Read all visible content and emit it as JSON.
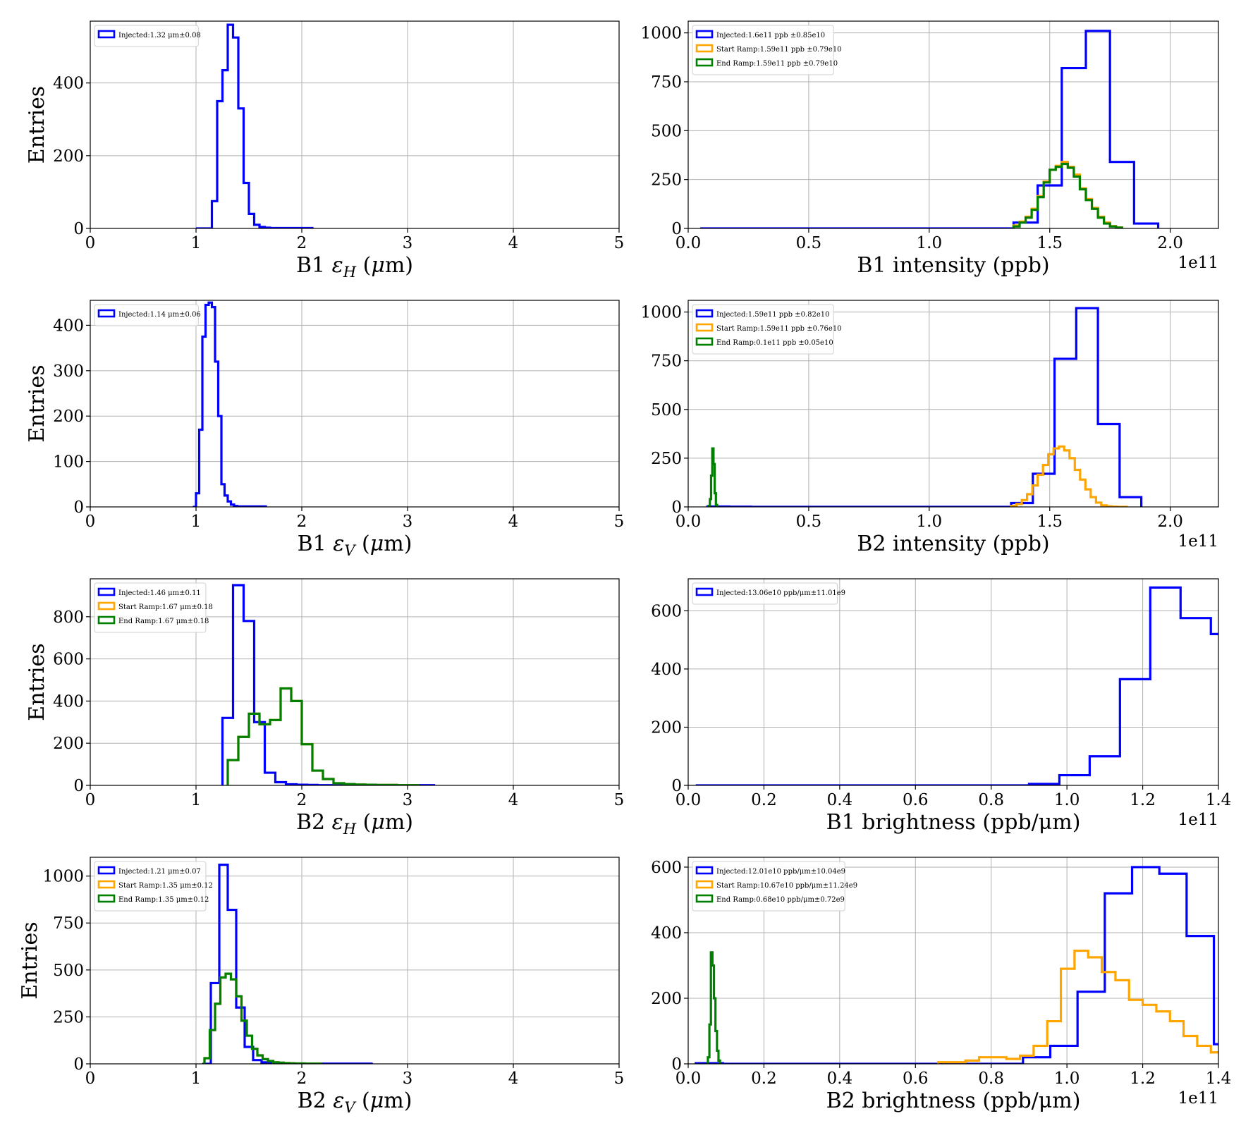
{
  "chart_data": [
    {
      "type": "histogram",
      "panel": "b1-eh",
      "xlabel": "B1 ε_H (μm)",
      "xlabel_parts": [
        "B1 ",
        "ε",
        "H",
        " (",
        "μ",
        "m)"
      ],
      "ylabel": "Entries",
      "xlim": [
        0,
        5
      ],
      "ylim": [
        0,
        570
      ],
      "xticks": [
        0,
        1,
        2,
        3,
        4,
        5
      ],
      "xtick_labels": [
        "0",
        "1",
        "2",
        "3",
        "4",
        "5"
      ],
      "yticks": [
        0,
        200,
        400
      ],
      "ytick_labels": [
        "0",
        "200",
        "400"
      ],
      "offset_label": "",
      "grid": true,
      "legend_position": "top-left",
      "series": [
        {
          "name": "Injected:1.32 μm±0.08",
          "color": "#0000ff",
          "bin_width": 0.05,
          "x_start": 1.0,
          "values": [
            0,
            0,
            0,
            75,
            350,
            435,
            560,
            525,
            330,
            125,
            40,
            10,
            4,
            2,
            1,
            1,
            1,
            1,
            1,
            1,
            1,
            1
          ]
        }
      ]
    },
    {
      "type": "histogram",
      "panel": "b1-intensity",
      "xlabel": "B1 intensity (ppb)",
      "ylabel": "",
      "xlim": [
        0,
        2.2
      ],
      "ylim": [
        0,
        1060
      ],
      "xticks": [
        0,
        0.5,
        1.0,
        1.5,
        2.0
      ],
      "xtick_labels": [
        "0.0",
        "0.5",
        "1.0",
        "1.5",
        "2.0"
      ],
      "yticks": [
        0,
        250,
        500,
        750,
        1000
      ],
      "ytick_labels": [
        "0",
        "250",
        "500",
        "750",
        "1000"
      ],
      "offset_label": "1e11",
      "grid": true,
      "legend_position": "top-left",
      "series": [
        {
          "name": "Injected:1.6e11 ppb ±0.85e10",
          "color": "#0000ff",
          "bin_width": 0.1,
          "x_start": 0.05,
          "values": [
            0,
            0,
            0,
            0,
            0,
            0,
            0,
            0,
            0,
            0,
            0,
            0,
            0,
            30,
            220,
            820,
            1010,
            340,
            25
          ]
        },
        {
          "name": "Start Ramp:1.59e11 ppb ±0.79e10",
          "color": "#ffa500",
          "bin_width": 0.025,
          "x_start": 1.35,
          "values": [
            15,
            35,
            60,
            100,
            165,
            240,
            300,
            320,
            340,
            315,
            275,
            205,
            150,
            105,
            60,
            30,
            12,
            5
          ]
        },
        {
          "name": "End Ramp:1.59e11 ppb ±0.79e10",
          "color": "#008000",
          "bin_width": 0.025,
          "x_start": 1.35,
          "values": [
            10,
            30,
            55,
            95,
            160,
            235,
            300,
            315,
            330,
            310,
            265,
            200,
            145,
            100,
            55,
            25,
            10,
            4
          ]
        }
      ]
    },
    {
      "type": "histogram",
      "panel": "b1-ev",
      "xlabel": "B1 ε_V (μm)",
      "xlabel_parts": [
        "B1 ",
        "ε",
        "V",
        " (",
        "μ",
        "m)"
      ],
      "ylabel": "Entries",
      "xlim": [
        0,
        5
      ],
      "ylim": [
        0,
        455
      ],
      "xticks": [
        0,
        1,
        2,
        3,
        4,
        5
      ],
      "xtick_labels": [
        "0",
        "1",
        "2",
        "3",
        "4",
        "5"
      ],
      "yticks": [
        0,
        100,
        200,
        300,
        400
      ],
      "ytick_labels": [
        "0",
        "100",
        "200",
        "300",
        "400"
      ],
      "offset_label": "",
      "grid": true,
      "legend_position": "top-left",
      "series": [
        {
          "name": "Injected:1.14 μm±0.06",
          "color": "#0000ff",
          "bin_width": 0.03,
          "x_start": 0.97,
          "values": [
            0,
            30,
            170,
            375,
            445,
            450,
            440,
            320,
            200,
            50,
            25,
            12,
            5,
            2,
            1,
            1,
            1,
            1,
            1,
            1,
            1,
            1,
            1
          ]
        }
      ]
    },
    {
      "type": "histogram",
      "panel": "b2-intensity",
      "xlabel": "B2 intensity (ppb)",
      "ylabel": "",
      "xlim": [
        0,
        2.2
      ],
      "ylim": [
        0,
        1060
      ],
      "xticks": [
        0,
        0.5,
        1.0,
        1.5,
        2.0
      ],
      "xtick_labels": [
        "0.0",
        "0.5",
        "1.0",
        "1.5",
        "2.0"
      ],
      "yticks": [
        0,
        250,
        500,
        750,
        1000
      ],
      "ytick_labels": [
        "0",
        "250",
        "500",
        "750",
        "1000"
      ],
      "offset_label": "1e11",
      "grid": true,
      "legend_position": "top-left",
      "series": [
        {
          "name": "Injected:1.59e11 ppb ±0.82e10",
          "color": "#0000ff",
          "bin_width": 0.09,
          "x_start": 0.08,
          "values": [
            2,
            1,
            0,
            0,
            0,
            0,
            0,
            0,
            0,
            0,
            0,
            0,
            0,
            0,
            20,
            170,
            760,
            1020,
            425,
            50
          ]
        },
        {
          "name": "Start Ramp:1.59e11 ppb ±0.76e10",
          "color": "#ffa500",
          "bin_width": 0.022,
          "x_start": 1.34,
          "values": [
            5,
            15,
            35,
            65,
            110,
            165,
            215,
            270,
            300,
            310,
            290,
            250,
            190,
            140,
            90,
            50,
            22,
            8,
            3,
            1,
            0,
            0
          ]
        },
        {
          "name": "End Ramp:0.1e11 ppb ±0.05e10",
          "color": "#008000",
          "bin_width": 0.005,
          "x_start": 0.085,
          "values": [
            5,
            40,
            160,
            300,
            220,
            70,
            10,
            0
          ]
        }
      ]
    },
    {
      "type": "histogram",
      "panel": "b2-eh",
      "xlabel": "B2 ε_H (μm)",
      "xlabel_parts": [
        "B2 ",
        "ε",
        "H",
        " (",
        "μ",
        "m)"
      ],
      "ylabel": "Entries",
      "xlim": [
        0,
        5
      ],
      "ylim": [
        0,
        980
      ],
      "xticks": [
        0,
        1,
        2,
        3,
        4,
        5
      ],
      "xtick_labels": [
        "0",
        "1",
        "2",
        "3",
        "4",
        "5"
      ],
      "yticks": [
        0,
        200,
        400,
        600,
        800
      ],
      "ytick_labels": [
        "0",
        "200",
        "400",
        "600",
        "800"
      ],
      "offset_label": "",
      "grid": true,
      "legend_position": "top-left",
      "series": [
        {
          "name": "Injected:1.46 μm±0.11",
          "color": "#0000ff",
          "bin_width": 0.1,
          "x_start": 1.25,
          "values": [
            320,
            950,
            780,
            300,
            60,
            15,
            5,
            3,
            2,
            1,
            1,
            1,
            1,
            1,
            1,
            1,
            1,
            1,
            1,
            1
          ]
        },
        {
          "name": "Start Ramp:1.67 μm±0.18",
          "color": "#ffa500",
          "bin_width": 0.1,
          "x_start": 1.3,
          "values": [
            120,
            230,
            340,
            290,
            310,
            460,
            400,
            195,
            70,
            30,
            10,
            6,
            4,
            3,
            2,
            2,
            1,
            1
          ]
        },
        {
          "name": "End Ramp:1.67 μm±0.18",
          "color": "#008000",
          "bin_width": 0.1,
          "x_start": 1.3,
          "values": [
            120,
            230,
            340,
            290,
            310,
            460,
            400,
            195,
            70,
            30,
            10,
            6,
            4,
            3,
            2,
            2,
            1,
            1
          ]
        }
      ]
    },
    {
      "type": "histogram",
      "panel": "b1-brightness",
      "xlabel": "B1 brightness (ppb/μm)",
      "ylabel": "",
      "xlim": [
        0,
        1.4
      ],
      "ylim": [
        0,
        710
      ],
      "xticks": [
        0,
        0.2,
        0.4,
        0.6,
        0.8,
        1.0,
        1.2,
        1.4
      ],
      "xtick_labels": [
        "0.0",
        "0.2",
        "0.4",
        "0.6",
        "0.8",
        "1.0",
        "1.2",
        "1.4"
      ],
      "yticks": [
        0,
        200,
        400,
        600
      ],
      "ytick_labels": [
        "0",
        "200",
        "400",
        "600"
      ],
      "offset_label": "1e11",
      "grid": true,
      "legend_position": "top-left",
      "series": [
        {
          "name": "Injected:13.06e10 ppb/μm±11.01e9",
          "color": "#0000ff",
          "bin_width": 0.08,
          "x_start": 0.02,
          "values": [
            0,
            0,
            0,
            0,
            0,
            0,
            0,
            0,
            0,
            0,
            0,
            5,
            35,
            100,
            365,
            680,
            575,
            520
          ]
        }
      ]
    },
    {
      "type": "histogram",
      "panel": "b2-ev",
      "xlabel": "B2 ε_V (μm)",
      "xlabel_parts": [
        "B2 ",
        "ε",
        "V",
        " (",
        "μ",
        "m)"
      ],
      "ylabel": "Entries",
      "xlim": [
        0,
        5
      ],
      "ylim": [
        0,
        1100
      ],
      "xticks": [
        0,
        1,
        2,
        3,
        4,
        5
      ],
      "xtick_labels": [
        "0",
        "1",
        "2",
        "3",
        "4",
        "5"
      ],
      "yticks": [
        0,
        250,
        500,
        750,
        1000
      ],
      "ytick_labels": [
        "0",
        "250",
        "500",
        "750",
        "1000"
      ],
      "offset_label": "",
      "grid": true,
      "legend_position": "top-left",
      "series": [
        {
          "name": "Injected:1.21 μm±0.07",
          "color": "#0000ff",
          "bin_width": 0.08,
          "x_start": 1.06,
          "values": [
            0,
            430,
            1060,
            820,
            300,
            90,
            20,
            8,
            4,
            2,
            1,
            1,
            1,
            1,
            1,
            1,
            1,
            1,
            1,
            1
          ]
        },
        {
          "name": "Start Ramp:1.35 μm±0.12",
          "color": "#ffa500",
          "bin_width": 0.05,
          "x_start": 1.08,
          "values": [
            30,
            180,
            320,
            460,
            480,
            450,
            360,
            230,
            150,
            80,
            45,
            25,
            15,
            8,
            6,
            4,
            3,
            2,
            2,
            1,
            1,
            1
          ]
        },
        {
          "name": "End Ramp:1.35 μm±0.12",
          "color": "#008000",
          "bin_width": 0.05,
          "x_start": 1.08,
          "values": [
            30,
            180,
            320,
            460,
            480,
            450,
            360,
            230,
            150,
            80,
            45,
            25,
            15,
            8,
            6,
            4,
            3,
            2,
            2,
            1,
            1,
            1
          ]
        }
      ]
    },
    {
      "type": "histogram",
      "panel": "b2-brightness",
      "xlabel": "B2 brightness (ppb/μm)",
      "ylabel": "",
      "xlim": [
        0,
        1.4
      ],
      "ylim": [
        0,
        630
      ],
      "xticks": [
        0,
        0.2,
        0.4,
        0.6,
        0.8,
        1.0,
        1.2,
        1.4
      ],
      "xtick_labels": [
        "0.0",
        "0.2",
        "0.4",
        "0.6",
        "0.8",
        "1.0",
        "1.2",
        "1.4"
      ],
      "yticks": [
        0,
        200,
        400,
        600
      ],
      "ytick_labels": [
        "0",
        "200",
        "400",
        "600"
      ],
      "offset_label": "1e11",
      "grid": true,
      "legend_position": "top-left",
      "series": [
        {
          "name": "Injected:12.01e10 ppb/μm±10.04e9",
          "color": "#0000ff",
          "bin_width": 0.072,
          "x_start": 0.02,
          "values": [
            2,
            0,
            0,
            0,
            0,
            0,
            0,
            0,
            0,
            0,
            0,
            0,
            20,
            55,
            220,
            520,
            600,
            580,
            390,
            60
          ]
        },
        {
          "name": "Start Ramp:10.67e10 ppb/μm±11.24e9",
          "color": "#ffa500",
          "bin_width": 0.036,
          "x_start": 0.66,
          "values": [
            5,
            5,
            10,
            20,
            20,
            15,
            25,
            55,
            130,
            290,
            345,
            325,
            280,
            255,
            195,
            180,
            160,
            130,
            85,
            55,
            35,
            15
          ]
        },
        {
          "name": "End Ramp:0.68e10 ppb/μm±0.72e9",
          "color": "#008000",
          "bin_width": 0.004,
          "x_start": 0.052,
          "values": [
            20,
            120,
            340,
            300,
            200,
            100,
            40,
            10
          ]
        }
      ]
    }
  ]
}
